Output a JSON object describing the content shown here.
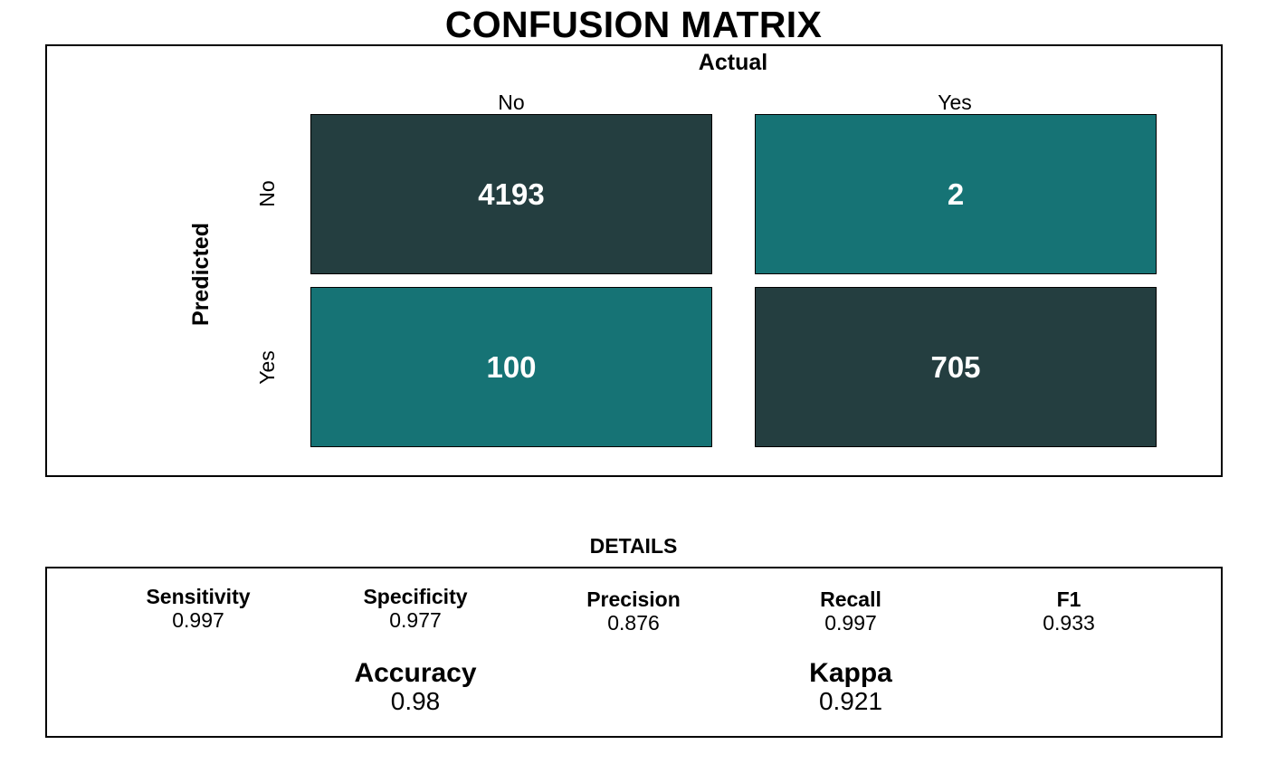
{
  "title": "CONFUSION MATRIX",
  "chart_data": {
    "type": "heatmap",
    "title": "CONFUSION MATRIX",
    "xlabel": "Actual",
    "ylabel": "Predicted",
    "x_categories": [
      "No",
      "Yes"
    ],
    "y_categories": [
      "No",
      "Yes"
    ],
    "cells": [
      {
        "predicted": "No",
        "actual": "No",
        "value": 4193,
        "label": "4193",
        "color": "#243e40"
      },
      {
        "predicted": "No",
        "actual": "Yes",
        "value": 2,
        "label": "2",
        "color": "#167375"
      },
      {
        "predicted": "Yes",
        "actual": "No",
        "value": 100,
        "label": "100",
        "color": "#167375"
      },
      {
        "predicted": "Yes",
        "actual": "Yes",
        "value": 705,
        "label": "705",
        "color": "#243e40"
      }
    ]
  },
  "details": {
    "title": "DETAILS",
    "metrics": [
      {
        "label": "Sensitivity",
        "value": "0.997"
      },
      {
        "label": "Specificity",
        "value": "0.977"
      },
      {
        "label": "Precision",
        "value": "0.876"
      },
      {
        "label": "Recall",
        "value": "0.997"
      },
      {
        "label": "F1",
        "value": "0.933"
      }
    ],
    "summary": [
      {
        "label": "Accuracy",
        "value": "0.98"
      },
      {
        "label": "Kappa",
        "value": "0.921"
      }
    ]
  }
}
